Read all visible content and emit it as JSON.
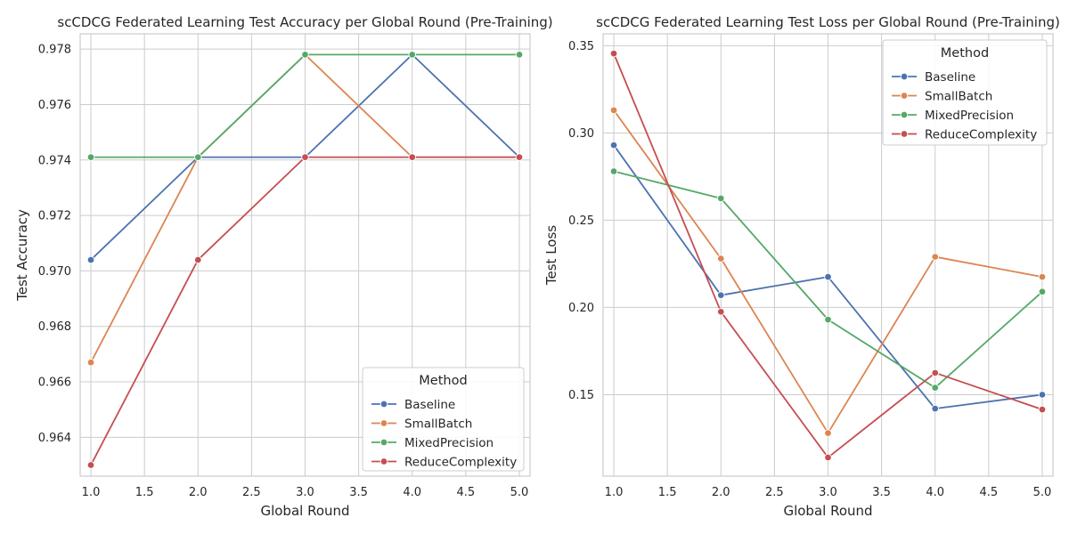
{
  "series_colors": {
    "Baseline": "#4c72b0",
    "SmallBatch": "#dd8452",
    "MixedPrecision": "#55a868",
    "ReduceComplexity": "#c44e52"
  },
  "chart_data": [
    {
      "type": "line",
      "title": "scCDCG Federated Learning Test Accuracy per Global Round (Pre-Training)",
      "xlabel": "Global Round",
      "ylabel": "Test Accuracy",
      "xlim": [
        0.9,
        5.1
      ],
      "ylim": [
        0.9626,
        0.97855
      ],
      "xticks": [
        1.0,
        1.5,
        2.0,
        2.5,
        3.0,
        3.5,
        4.0,
        4.5,
        5.0
      ],
      "xtick_labels": [
        "1.0",
        "1.5",
        "2.0",
        "2.5",
        "3.0",
        "3.5",
        "4.0",
        "4.5",
        "5.0"
      ],
      "yticks": [
        0.964,
        0.966,
        0.968,
        0.97,
        0.972,
        0.974,
        0.976,
        0.978
      ],
      "ytick_labels": [
        "0.964",
        "0.966",
        "0.968",
        "0.970",
        "0.972",
        "0.974",
        "0.976",
        "0.978"
      ],
      "grid": true,
      "legend": {
        "title": "Method",
        "placement": "lower-right"
      },
      "x": [
        1.0,
        2.0,
        3.0,
        4.0,
        5.0
      ],
      "series": [
        {
          "name": "Baseline",
          "values": [
            0.9704,
            0.9741,
            0.9741,
            0.9778,
            0.9741
          ]
        },
        {
          "name": "SmallBatch",
          "values": [
            0.9667,
            0.9741,
            0.9778,
            0.9741,
            0.9741
          ]
        },
        {
          "name": "MixedPrecision",
          "values": [
            0.9741,
            0.9741,
            0.9778,
            0.9778,
            0.9778
          ]
        },
        {
          "name": "ReduceComplexity",
          "values": [
            0.963,
            0.9704,
            0.9741,
            0.9741,
            0.9741
          ]
        }
      ]
    },
    {
      "type": "line",
      "title": "scCDCG Federated Learning Test Loss per Global Round (Pre-Training)",
      "xlabel": "Global Round",
      "ylabel": "Test Loss",
      "xlim": [
        0.9,
        5.1
      ],
      "ylim": [
        0.1033,
        0.3568
      ],
      "xticks": [
        1.0,
        1.5,
        2.0,
        2.5,
        3.0,
        3.5,
        4.0,
        4.5,
        5.0
      ],
      "xtick_labels": [
        "1.0",
        "1.5",
        "2.0",
        "2.5",
        "3.0",
        "3.5",
        "4.0",
        "4.5",
        "5.0"
      ],
      "yticks": [
        0.15,
        0.2,
        0.25,
        0.3,
        0.35
      ],
      "ytick_labels": [
        "0.15",
        "0.20",
        "0.25",
        "0.30",
        "0.35"
      ],
      "grid": true,
      "legend": {
        "title": "Method",
        "placement": "upper-right"
      },
      "x": [
        1.0,
        2.0,
        3.0,
        4.0,
        5.0
      ],
      "series": [
        {
          "name": "Baseline",
          "values": [
            0.293,
            0.207,
            0.2175,
            0.142,
            0.15
          ]
        },
        {
          "name": "SmallBatch",
          "values": [
            0.313,
            0.228,
            0.128,
            0.229,
            0.2175
          ]
        },
        {
          "name": "MixedPrecision",
          "values": [
            0.278,
            0.2625,
            0.193,
            0.154,
            0.209
          ]
        },
        {
          "name": "ReduceComplexity",
          "values": [
            0.3455,
            0.1975,
            0.114,
            0.1625,
            0.1415
          ]
        }
      ]
    }
  ]
}
